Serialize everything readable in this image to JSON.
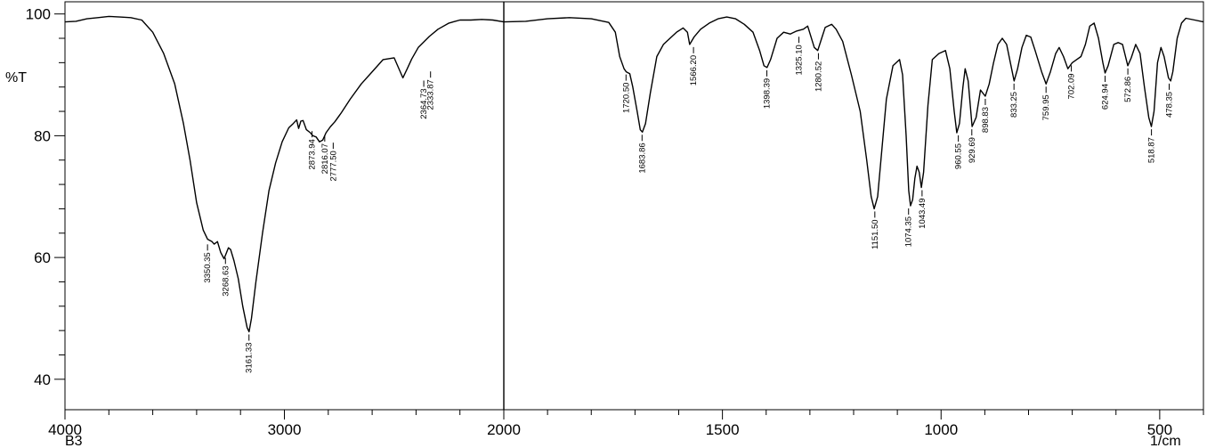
{
  "chart_data": {
    "type": "line",
    "title": "",
    "ylabel": "%T",
    "xunit": "1/cm",
    "sample": "B3",
    "grid": false,
    "ylim": [
      35,
      102
    ],
    "y_ticks": [
      40,
      60,
      80,
      100
    ],
    "y_minor_step": 4,
    "x_breakpoint": 2000,
    "panels": [
      {
        "range": [
          4000,
          2000
        ],
        "ticks": [
          4000,
          3000,
          2000
        ],
        "minor_step": 200
      },
      {
        "range": [
          2000,
          400
        ],
        "ticks": [
          1500,
          1000,
          500
        ],
        "minor_step": 100
      }
    ],
    "tick_labels": {
      "4000": "4000",
      "3000": "3000",
      "2000": "2000",
      "1500": "1500",
      "1000": "1000",
      "500": "500"
    },
    "series": [
      {
        "points": [
          [
            4000,
            98.7
          ],
          [
            3950,
            98.8
          ],
          [
            3900,
            99.2
          ],
          [
            3850,
            99.4
          ],
          [
            3800,
            99.6
          ],
          [
            3750,
            99.5
          ],
          [
            3700,
            99.4
          ],
          [
            3650,
            99.0
          ],
          [
            3600,
            97.0
          ],
          [
            3550,
            93.5
          ],
          [
            3500,
            88.5
          ],
          [
            3460,
            82.0
          ],
          [
            3430,
            76.0
          ],
          [
            3400,
            69.0
          ],
          [
            3370,
            64.5
          ],
          [
            3350,
            63.0
          ],
          [
            3330,
            62.6
          ],
          [
            3320,
            62.2
          ],
          [
            3305,
            62.6
          ],
          [
            3290,
            60.8
          ],
          [
            3275,
            59.8
          ],
          [
            3268,
            60.4
          ],
          [
            3255,
            61.6
          ],
          [
            3245,
            61.3
          ],
          [
            3230,
            59.5
          ],
          [
            3210,
            56.5
          ],
          [
            3190,
            52.0
          ],
          [
            3170,
            48.5
          ],
          [
            3161,
            47.8
          ],
          [
            3150,
            50.0
          ],
          [
            3130,
            56.0
          ],
          [
            3100,
            64.0
          ],
          [
            3070,
            71.0
          ],
          [
            3040,
            75.5
          ],
          [
            3010,
            79.0
          ],
          [
            2980,
            81.3
          ],
          [
            2960,
            82.0
          ],
          [
            2944,
            82.6
          ],
          [
            2935,
            81.2
          ],
          [
            2925,
            82.4
          ],
          [
            2915,
            82.5
          ],
          [
            2900,
            81.0
          ],
          [
            2882,
            80.5
          ],
          [
            2870,
            80.0
          ],
          [
            2855,
            79.8
          ],
          [
            2840,
            79.0
          ],
          [
            2825,
            79.3
          ],
          [
            2810,
            80.5
          ],
          [
            2790,
            81.5
          ],
          [
            2770,
            82.3
          ],
          [
            2740,
            83.8
          ],
          [
            2700,
            86.0
          ],
          [
            2650,
            88.5
          ],
          [
            2600,
            90.5
          ],
          [
            2550,
            92.5
          ],
          [
            2500,
            92.8
          ],
          [
            2460,
            89.5
          ],
          [
            2440,
            91.0
          ],
          [
            2420,
            92.6
          ],
          [
            2390,
            94.5
          ],
          [
            2340,
            96.3
          ],
          [
            2300,
            97.5
          ],
          [
            2250,
            98.5
          ],
          [
            2200,
            99.0
          ],
          [
            2150,
            99.0
          ],
          [
            2100,
            99.1
          ],
          [
            2050,
            99.0
          ],
          [
            2000,
            98.7
          ],
          [
            1950,
            98.8
          ],
          [
            1900,
            99.2
          ],
          [
            1850,
            99.4
          ],
          [
            1800,
            99.2
          ],
          [
            1760,
            98.6
          ],
          [
            1745,
            97.0
          ],
          [
            1735,
            93.0
          ],
          [
            1725,
            91.0
          ],
          [
            1720,
            90.5
          ],
          [
            1712,
            90.2
          ],
          [
            1705,
            88.0
          ],
          [
            1695,
            84.0
          ],
          [
            1688,
            81.0
          ],
          [
            1683,
            80.6
          ],
          [
            1676,
            82.0
          ],
          [
            1665,
            87.0
          ],
          [
            1650,
            93.0
          ],
          [
            1635,
            95.0
          ],
          [
            1620,
            96.0
          ],
          [
            1605,
            97.0
          ],
          [
            1590,
            97.7
          ],
          [
            1580,
            97.0
          ],
          [
            1575,
            95.0
          ],
          [
            1565,
            96.2
          ],
          [
            1550,
            97.5
          ],
          [
            1530,
            98.5
          ],
          [
            1510,
            99.2
          ],
          [
            1490,
            99.5
          ],
          [
            1470,
            99.2
          ],
          [
            1450,
            98.3
          ],
          [
            1430,
            97.0
          ],
          [
            1415,
            94.0
          ],
          [
            1405,
            91.5
          ],
          [
            1398,
            91.2
          ],
          [
            1390,
            92.5
          ],
          [
            1375,
            96.0
          ],
          [
            1360,
            97.0
          ],
          [
            1345,
            96.7
          ],
          [
            1330,
            97.2
          ],
          [
            1315,
            97.5
          ],
          [
            1305,
            98.0
          ],
          [
            1290,
            94.5
          ],
          [
            1282,
            94.0
          ],
          [
            1273,
            96.0
          ],
          [
            1265,
            97.8
          ],
          [
            1250,
            98.3
          ],
          [
            1240,
            97.5
          ],
          [
            1225,
            95.5
          ],
          [
            1205,
            90.0
          ],
          [
            1185,
            84.0
          ],
          [
            1170,
            76.0
          ],
          [
            1160,
            70.0
          ],
          [
            1153,
            68.0
          ],
          [
            1145,
            70.0
          ],
          [
            1135,
            78.0
          ],
          [
            1125,
            86.0
          ],
          [
            1110,
            91.5
          ],
          [
            1095,
            92.5
          ],
          [
            1088,
            90.0
          ],
          [
            1080,
            80.0
          ],
          [
            1074,
            71.0
          ],
          [
            1070,
            68.5
          ],
          [
            1065,
            69.5
          ],
          [
            1060,
            73.0
          ],
          [
            1055,
            75.0
          ],
          [
            1050,
            74.0
          ],
          [
            1045,
            71.5
          ],
          [
            1040,
            74.0
          ],
          [
            1030,
            85.0
          ],
          [
            1020,
            92.5
          ],
          [
            1005,
            93.5
          ],
          [
            990,
            94.0
          ],
          [
            980,
            91.0
          ],
          [
            970,
            84.0
          ],
          [
            964,
            80.5
          ],
          [
            958,
            82.0
          ],
          [
            950,
            88.0
          ],
          [
            945,
            91.0
          ],
          [
            938,
            89.0
          ],
          [
            929,
            81.5
          ],
          [
            920,
            83.0
          ],
          [
            910,
            87.5
          ],
          [
            899,
            86.5
          ],
          [
            890,
            88.5
          ],
          [
            880,
            92.0
          ],
          [
            870,
            95.0
          ],
          [
            860,
            96.0
          ],
          [
            850,
            95.0
          ],
          [
            840,
            91.5
          ],
          [
            833,
            89.0
          ],
          [
            825,
            91.0
          ],
          [
            815,
            94.5
          ],
          [
            805,
            96.5
          ],
          [
            795,
            96.2
          ],
          [
            785,
            94.0
          ],
          [
            770,
            90.5
          ],
          [
            760,
            88.5
          ],
          [
            750,
            90.5
          ],
          [
            738,
            93.5
          ],
          [
            730,
            94.5
          ],
          [
            720,
            93.0
          ],
          [
            710,
            91.0
          ],
          [
            700,
            92.0
          ],
          [
            690,
            92.5
          ],
          [
            680,
            93.0
          ],
          [
            670,
            95.0
          ],
          [
            660,
            98.0
          ],
          [
            650,
            98.5
          ],
          [
            640,
            96.0
          ],
          [
            630,
            92.0
          ],
          [
            625,
            90.3
          ],
          [
            618,
            91.5
          ],
          [
            605,
            95.0
          ],
          [
            595,
            95.3
          ],
          [
            585,
            95.0
          ],
          [
            573,
            91.5
          ],
          [
            565,
            92.8
          ],
          [
            555,
            95.0
          ],
          [
            545,
            93.5
          ],
          [
            535,
            88.0
          ],
          [
            525,
            83.0
          ],
          [
            519,
            81.5
          ],
          [
            513,
            84.0
          ],
          [
            505,
            92.0
          ],
          [
            497,
            94.5
          ],
          [
            490,
            93.0
          ],
          [
            480,
            89.5
          ],
          [
            475,
            89.0
          ],
          [
            470,
            90.5
          ],
          [
            460,
            96.0
          ],
          [
            450,
            98.5
          ],
          [
            440,
            99.3
          ],
          [
            420,
            99.0
          ],
          [
            400,
            98.7
          ]
        ]
      }
    ],
    "peaks": [
      {
        "x": 3350.35,
        "y": 62.6,
        "label": "3350.35",
        "side": "below"
      },
      {
        "x": 3268.63,
        "y": 60.4,
        "label": "3268.63",
        "side": "below"
      },
      {
        "x": 3161.33,
        "y": 47.8,
        "label": "3161.33",
        "side": "below"
      },
      {
        "x": 2873.94,
        "y": 81.2,
        "label": "2873.94",
        "side": "below"
      },
      {
        "x": 2816.07,
        "y": 80.5,
        "label": "2816.07",
        "side": "below"
      },
      {
        "x": 2777.5,
        "y": 79.3,
        "label": "2777.50",
        "side": "below"
      },
      {
        "x": 2364.73,
        "y": 89.5,
        "label": "2364.73",
        "side": "below"
      },
      {
        "x": 2333.87,
        "y": 91.0,
        "label": "2333.87",
        "side": "below"
      },
      {
        "x": 1720.5,
        "y": 90.5,
        "label": "1720.50",
        "side": "below"
      },
      {
        "x": 1683.86,
        "y": 80.6,
        "label": "1683.86",
        "side": "below"
      },
      {
        "x": 1566.2,
        "y": 95.0,
        "label": "1566.20",
        "side": "below"
      },
      {
        "x": 1398.39,
        "y": 91.2,
        "label": "1398.39",
        "side": "below"
      },
      {
        "x": 1325.1,
        "y": 96.7,
        "label": "1325.10",
        "side": "below"
      },
      {
        "x": 1280.52,
        "y": 94.0,
        "label": "1280.52",
        "side": "below"
      },
      {
        "x": 1151.5,
        "y": 68.0,
        "label": "1151.50",
        "side": "below"
      },
      {
        "x": 1074.35,
        "y": 68.5,
        "label": "1074.35",
        "side": "below"
      },
      {
        "x": 1043.49,
        "y": 71.5,
        "label": "1043.49",
        "side": "below"
      },
      {
        "x": 960.55,
        "y": 80.5,
        "label": "960.55",
        "side": "below"
      },
      {
        "x": 929.69,
        "y": 81.5,
        "label": "929.69",
        "side": "below"
      },
      {
        "x": 898.83,
        "y": 86.5,
        "label": "898.83",
        "side": "below"
      },
      {
        "x": 833.25,
        "y": 89.0,
        "label": "833.25",
        "side": "below"
      },
      {
        "x": 759.95,
        "y": 88.5,
        "label": "759.95",
        "side": "below"
      },
      {
        "x": 702.09,
        "y": 92.0,
        "label": "702.09",
        "side": "below"
      },
      {
        "x": 624.94,
        "y": 90.3,
        "label": "624.94",
        "side": "below"
      },
      {
        "x": 572.86,
        "y": 91.5,
        "label": "572.86",
        "side": "below"
      },
      {
        "x": 518.87,
        "y": 81.5,
        "label": "518.87",
        "side": "below"
      },
      {
        "x": 478.35,
        "y": 89.0,
        "label": "478.35",
        "side": "below"
      }
    ]
  }
}
